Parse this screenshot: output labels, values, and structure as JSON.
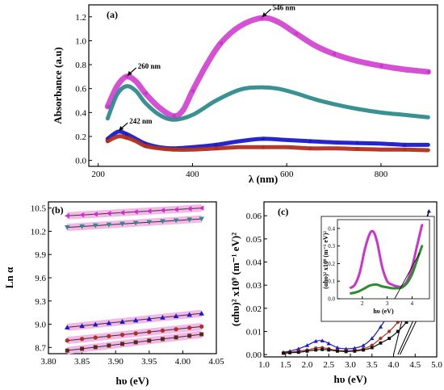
{
  "chart_data": [
    {
      "panel": "(a)",
      "type": "line",
      "xlabel": "λ (nm)",
      "ylabel": "Absorbance (a.u)",
      "xlim": [
        180,
        920
      ],
      "ylim": [
        -0.05,
        1.3
      ],
      "xticks": [
        200,
        400,
        600,
        800
      ],
      "yticks": [
        0.0,
        0.2,
        0.4,
        0.6,
        0.8,
        1.0,
        1.2
      ],
      "xtick_labels": [
        "200",
        "400",
        "600",
        "800"
      ],
      "ytick_labels": [
        "0.0",
        "0.2",
        "0.4",
        "0.6",
        "0.8",
        "1.0",
        "1.2"
      ],
      "series": [
        {
          "color": "#cc33cc",
          "marker": "triangle-left",
          "x": [
            220,
            240,
            260,
            280,
            300,
            330,
            360,
            380,
            400,
            430,
            460,
            500,
            546,
            580,
            620,
            660,
            700,
            750,
            800,
            850,
            900
          ],
          "y": [
            0.45,
            0.62,
            0.7,
            0.66,
            0.56,
            0.44,
            0.37,
            0.42,
            0.58,
            0.8,
            0.98,
            1.12,
            1.19,
            1.16,
            1.06,
            0.96,
            0.89,
            0.83,
            0.79,
            0.76,
            0.74
          ]
        },
        {
          "color": "#2e8b8b",
          "marker": "none",
          "x": [
            220,
            240,
            260,
            280,
            300,
            330,
            360,
            400,
            450,
            500,
            540,
            580,
            620,
            660,
            700,
            750,
            800,
            850,
            900
          ],
          "y": [
            0.35,
            0.55,
            0.62,
            0.58,
            0.48,
            0.38,
            0.34,
            0.38,
            0.5,
            0.59,
            0.61,
            0.6,
            0.56,
            0.51,
            0.47,
            0.43,
            0.4,
            0.38,
            0.36
          ]
        },
        {
          "color": "#1a1acc",
          "marker": "triangle",
          "x": [
            220,
            242,
            260,
            280,
            300,
            330,
            360,
            400,
            450,
            500,
            550,
            600,
            650,
            700,
            750,
            800,
            850,
            900
          ],
          "y": [
            0.18,
            0.24,
            0.22,
            0.18,
            0.14,
            0.11,
            0.1,
            0.11,
            0.13,
            0.16,
            0.18,
            0.17,
            0.16,
            0.15,
            0.145,
            0.14,
            0.13,
            0.13
          ]
        },
        {
          "color": "#b03020",
          "marker": "circle",
          "x": [
            220,
            242,
            260,
            280,
            300,
            330,
            360,
            400,
            450,
            500,
            550,
            600,
            650,
            700,
            750,
            800,
            850,
            900
          ],
          "y": [
            0.16,
            0.2,
            0.19,
            0.16,
            0.12,
            0.1,
            0.09,
            0.09,
            0.1,
            0.11,
            0.11,
            0.11,
            0.1,
            0.1,
            0.095,
            0.09,
            0.09,
            0.085
          ]
        }
      ],
      "annotations": [
        {
          "text": "546 nm",
          "x": 546,
          "y": 1.19
        },
        {
          "text": "260 nm",
          "x": 260,
          "y": 0.7
        },
        {
          "text": "242 nm",
          "x": 242,
          "y": 0.24
        }
      ]
    },
    {
      "panel": "(b)",
      "type": "scatter",
      "xlabel": "hυ (eV)",
      "ylabel": "Ln α",
      "xlim": [
        3.8,
        4.05
      ],
      "ylim": [
        8.62,
        10.58
      ],
      "xticks": [
        3.8,
        3.85,
        3.9,
        3.95,
        4.0,
        4.05
      ],
      "yticks": [
        8.7,
        9.0,
        9.3,
        9.6,
        9.9,
        10.2,
        10.5
      ],
      "xtick_labels": [
        "3.80",
        "3.85",
        "3.90",
        "3.95",
        "4.00",
        "4.05"
      ],
      "ytick_labels": [
        "8.7",
        "9.0",
        "9.3",
        "9.6",
        "9.9",
        "10.2",
        "10.5"
      ],
      "x_points": [
        3.828,
        3.85,
        3.87,
        3.89,
        3.91,
        3.93,
        3.95,
        3.97,
        3.99,
        4.01,
        4.028
      ],
      "series": [
        {
          "color": "#cc33cc",
          "marker": "triangle-left",
          "y_start": 10.4,
          "y_end": 10.5
        },
        {
          "color": "#2e8b8b",
          "marker": "triangle-down",
          "y_start": 10.25,
          "y_end": 10.36
        },
        {
          "color": "#1a1acc",
          "marker": "triangle",
          "y_start": 8.96,
          "y_end": 9.14
        },
        {
          "color": "#b03020",
          "marker": "circle",
          "y_start": 8.79,
          "y_end": 8.97
        },
        {
          "color": "#5a2a18",
          "marker": "square",
          "y_start": 8.66,
          "y_end": 8.87
        }
      ]
    },
    {
      "panel": "(c)",
      "type": "scatter",
      "xlabel": "hυ (eV)",
      "ylabel": "(αhυ)² x10⁹ (m⁻¹ eV)²",
      "xlim": [
        1.0,
        5.0
      ],
      "ylim": [
        -0.001,
        0.066
      ],
      "xticks": [
        1.0,
        1.5,
        2.0,
        2.5,
        3.0,
        3.5,
        4.0,
        4.5,
        5.0
      ],
      "yticks": [
        0.0,
        0.01,
        0.02,
        0.03,
        0.04,
        0.05,
        0.06
      ],
      "xtick_labels": [
        "1.0",
        "1.5",
        "2.0",
        "2.5",
        "3.0",
        "3.5",
        "4.0",
        "4.5",
        "5.0"
      ],
      "ytick_labels": [
        "0.00",
        "0.01",
        "0.02",
        "0.03",
        "0.04",
        "0.05",
        "0.06"
      ],
      "series": [
        {
          "color": "#1a1acc",
          "marker": "triangle",
          "x": [
            1.45,
            1.6,
            1.8,
            2.0,
            2.2,
            2.35,
            2.5,
            2.7,
            2.9,
            3.1,
            3.3,
            3.5,
            3.7,
            3.9,
            4.1,
            4.3,
            4.5,
            4.7,
            4.82
          ],
          "y": [
            0.001,
            0.0015,
            0.0025,
            0.004,
            0.0058,
            0.006,
            0.0048,
            0.003,
            0.0025,
            0.0028,
            0.004,
            0.007,
            0.012,
            0.018,
            0.026,
            0.036,
            0.046,
            0.056,
            0.062
          ]
        },
        {
          "color": "#b03020",
          "marker": "circle",
          "x": [
            1.45,
            1.6,
            1.8,
            2.0,
            2.2,
            2.35,
            2.5,
            2.7,
            2.9,
            3.1,
            3.3,
            3.5,
            3.7,
            3.9,
            4.1,
            4.3,
            4.5,
            4.7,
            4.85
          ],
          "y": [
            0.0008,
            0.001,
            0.0015,
            0.002,
            0.0028,
            0.003,
            0.0025,
            0.0018,
            0.0016,
            0.0018,
            0.0025,
            0.004,
            0.007,
            0.01,
            0.014,
            0.019,
            0.024,
            0.029,
            0.031
          ]
        },
        {
          "color": "#111111",
          "marker": "square",
          "x": [
            1.45,
            1.6,
            1.8,
            2.0,
            2.2,
            2.35,
            2.5,
            2.7,
            2.9,
            3.1,
            3.3,
            3.5,
            3.7,
            3.9,
            4.1,
            4.3,
            4.5,
            4.7,
            4.85
          ],
          "y": [
            0.0006,
            0.0008,
            0.001,
            0.0015,
            0.002,
            0.0022,
            0.002,
            0.0015,
            0.0013,
            0.0015,
            0.002,
            0.003,
            0.005,
            0.007,
            0.01,
            0.014,
            0.019,
            0.024,
            0.027
          ]
        }
      ],
      "inset": {
        "type": "line",
        "xlabel": "hυ (eV)",
        "ylabel": "(αhυ)² x10⁹ (m⁻¹ eV)²",
        "xlim": [
          1.0,
          4.7
        ],
        "ylim": [
          0.0,
          0.45
        ],
        "xticks": [
          2,
          3,
          4
        ],
        "yticks": [
          0.0,
          0.1,
          0.2,
          0.3,
          0.4
        ],
        "xtick_labels": [
          "2",
          "3",
          "4"
        ],
        "ytick_labels": [
          "0.0",
          "0.1",
          "0.2",
          "0.3",
          "0.4"
        ],
        "series": [
          {
            "color": "#cc33cc",
            "marker": "triangle-left",
            "x": [
              1.5,
              1.7,
              1.9,
              2.1,
              2.3,
              2.45,
              2.6,
              2.8,
              3.0,
              3.2,
              3.4,
              3.6,
              3.8,
              4.0,
              4.2,
              4.4
            ],
            "y": [
              0.06,
              0.08,
              0.15,
              0.28,
              0.37,
              0.38,
              0.32,
              0.18,
              0.1,
              0.08,
              0.07,
              0.07,
              0.1,
              0.18,
              0.3,
              0.42
            ]
          },
          {
            "color": "#2e8b2e",
            "marker": "circle",
            "x": [
              1.5,
              1.7,
              1.9,
              2.1,
              2.3,
              2.45,
              2.6,
              2.8,
              3.0,
              3.2,
              3.4,
              3.6,
              3.8,
              4.0,
              4.2,
              4.4
            ],
            "y": [
              0.03,
              0.035,
              0.045,
              0.06,
              0.075,
              0.08,
              0.08,
              0.07,
              0.065,
              0.06,
              0.06,
              0.065,
              0.09,
              0.14,
              0.22,
              0.3
            ]
          }
        ]
      }
    }
  ]
}
